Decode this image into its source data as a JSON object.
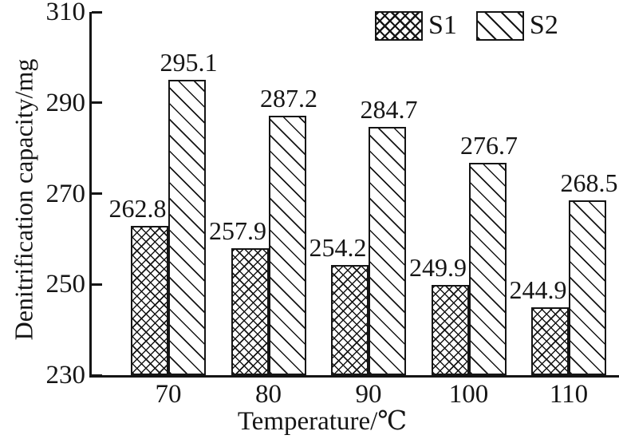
{
  "figure": {
    "background": "#ffffff",
    "ink_color": "#151515"
  },
  "chart_data": {
    "type": "bar",
    "title": "",
    "categories": [
      "70",
      "80",
      "90",
      "100",
      "110"
    ],
    "series": [
      {
        "name": "S1",
        "hatch": "crosshatch",
        "fill": "#ffffff",
        "values": [
          262.8,
          257.9,
          254.2,
          249.9,
          244.9
        ]
      },
      {
        "name": "S2",
        "hatch": "diagonal-lines",
        "fill": "#ffffff",
        "values": [
          295.1,
          287.2,
          284.7,
          276.7,
          268.5
        ]
      }
    ],
    "xlabel": "Temperature/℃",
    "ylabel": "Denitrification capacity/mg",
    "ylim": [
      230,
      310
    ],
    "yticks": [
      230,
      250,
      270,
      290,
      310
    ],
    "bar_value_labels": true,
    "grid": false,
    "legend_position": "top-right"
  }
}
